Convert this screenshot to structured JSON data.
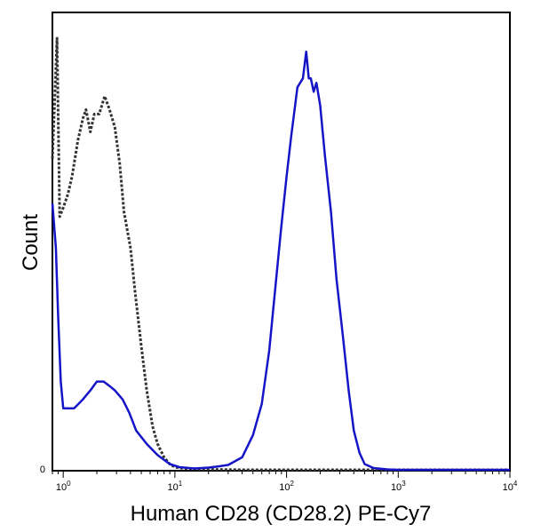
{
  "chart_data": {
    "type": "line",
    "title": "",
    "xlabel": "Human CD28 (CD28.2) PE-Cy7",
    "ylabel": "Count",
    "x_scale": "log",
    "xlim": [
      0.8,
      10000
    ],
    "ylim": [
      0,
      100
    ],
    "x_ticks": [
      {
        "value": 1,
        "base": "10",
        "exp": "0"
      },
      {
        "value": 10,
        "base": "10",
        "exp": "1"
      },
      {
        "value": 100,
        "base": "10",
        "exp": "2"
      },
      {
        "value": 1000,
        "base": "10",
        "exp": "3"
      },
      {
        "value": 10000,
        "base": "10",
        "exp": "4"
      }
    ],
    "y_ticks": [
      {
        "value": 0,
        "label": "0"
      }
    ],
    "grid": false,
    "legend": "none",
    "series": [
      {
        "color": "#000000",
        "style": "dotted",
        "points": [
          [
            0.8,
            70
          ],
          [
            0.88,
            97
          ],
          [
            0.93,
            57
          ],
          [
            1.0,
            59
          ],
          [
            1.1,
            62
          ],
          [
            1.2,
            66
          ],
          [
            1.35,
            74
          ],
          [
            1.5,
            79
          ],
          [
            1.6,
            81
          ],
          [
            1.75,
            76
          ],
          [
            1.9,
            80
          ],
          [
            2.1,
            80
          ],
          [
            2.35,
            84
          ],
          [
            2.6,
            81
          ],
          [
            2.9,
            77
          ],
          [
            3.2,
            69
          ],
          [
            3.5,
            58
          ],
          [
            4.0,
            50
          ],
          [
            4.4,
            40
          ],
          [
            5.0,
            28
          ],
          [
            5.6,
            18
          ],
          [
            6.3,
            10
          ],
          [
            7.0,
            6
          ],
          [
            8.0,
            3
          ],
          [
            9.0,
            1.5
          ],
          [
            10,
            0.8
          ],
          [
            12,
            0.5
          ],
          [
            20,
            0.3
          ],
          [
            40,
            0.2
          ],
          [
            100,
            0.2
          ],
          [
            1000,
            0.2
          ],
          [
            10000,
            0.2
          ]
        ]
      },
      {
        "color": "#1515c8",
        "style": "solid",
        "points": [
          [
            0.8,
            60
          ],
          [
            0.86,
            50
          ],
          [
            0.9,
            35
          ],
          [
            0.95,
            20
          ],
          [
            1.0,
            14
          ],
          [
            1.1,
            14
          ],
          [
            1.25,
            14
          ],
          [
            1.5,
            16
          ],
          [
            1.75,
            18
          ],
          [
            2.0,
            20
          ],
          [
            2.3,
            20
          ],
          [
            2.6,
            19
          ],
          [
            2.9,
            18
          ],
          [
            3.4,
            16
          ],
          [
            3.9,
            13
          ],
          [
            4.5,
            9
          ],
          [
            5.6,
            6
          ],
          [
            7.0,
            3.5
          ],
          [
            9.0,
            1.5
          ],
          [
            11,
            0.8
          ],
          [
            15,
            0.5
          ],
          [
            20,
            0.7
          ],
          [
            25,
            1.0
          ],
          [
            30,
            1.3
          ],
          [
            40,
            3
          ],
          [
            50,
            8
          ],
          [
            60,
            15
          ],
          [
            70,
            27
          ],
          [
            80,
            42
          ],
          [
            90,
            55
          ],
          [
            100,
            66
          ],
          [
            110,
            75
          ],
          [
            125,
            86
          ],
          [
            140,
            88
          ],
          [
            150,
            94
          ],
          [
            158,
            88
          ],
          [
            165,
            88
          ],
          [
            175,
            85
          ],
          [
            185,
            87
          ],
          [
            200,
            82
          ],
          [
            220,
            71
          ],
          [
            250,
            58
          ],
          [
            280,
            43
          ],
          [
            320,
            30
          ],
          [
            360,
            18
          ],
          [
            400,
            9
          ],
          [
            450,
            4
          ],
          [
            500,
            1.5
          ],
          [
            600,
            0.6
          ],
          [
            800,
            0.3
          ],
          [
            1000,
            0.2
          ],
          [
            10000,
            0.2
          ]
        ]
      }
    ]
  }
}
